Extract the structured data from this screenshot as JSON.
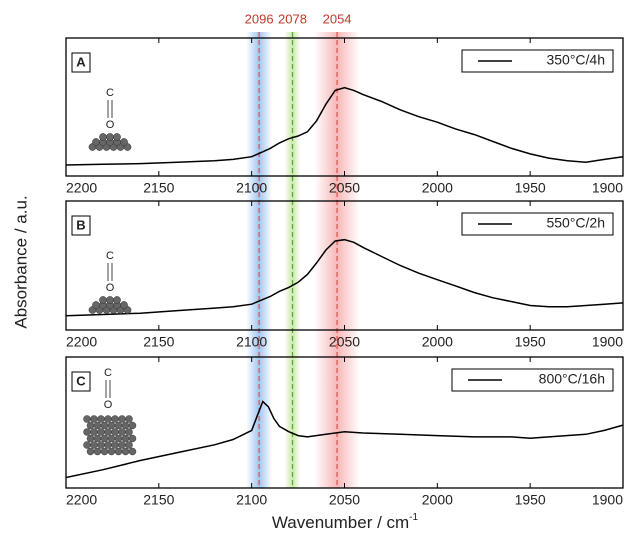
{
  "figure": {
    "ylabel": "Absorbance / a.u.",
    "xlabel": "Wavenumber / cm",
    "xlabel_superscript": "-1",
    "marker_label_color": "#c0392b",
    "markers": [
      {
        "x": 2096,
        "color": "#d9534f",
        "band_color": "#7fb2ee"
      },
      {
        "x": 2078,
        "color": "#55aa33",
        "band_color": "#b8e08a"
      },
      {
        "x": 2054,
        "color": "#d9534f",
        "band_color": "#f5a0a0"
      }
    ]
  },
  "chart_data": [
    {
      "type": "line",
      "panel_label": "A",
      "molecule": [
        "C",
        "O"
      ],
      "legend": "upper right",
      "x": [
        2200,
        2180,
        2160,
        2140,
        2120,
        2110,
        2100,
        2090,
        2085,
        2080,
        2075,
        2070,
        2065,
        2060,
        2055,
        2050,
        2045,
        2040,
        2030,
        2020,
        2010,
        2000,
        1990,
        1980,
        1970,
        1960,
        1950,
        1940,
        1930,
        1920,
        1910,
        1900
      ],
      "series": [
        {
          "name": "350°C/4h",
          "color": "#000000",
          "values": [
            0.08,
            0.085,
            0.09,
            0.1,
            0.11,
            0.12,
            0.14,
            0.2,
            0.24,
            0.27,
            0.29,
            0.32,
            0.4,
            0.52,
            0.62,
            0.64,
            0.62,
            0.59,
            0.54,
            0.48,
            0.43,
            0.39,
            0.34,
            0.3,
            0.25,
            0.2,
            0.16,
            0.13,
            0.11,
            0.1,
            0.12,
            0.14
          ]
        }
      ],
      "xlim": [
        2200,
        1900
      ],
      "ylim": [
        0,
        1
      ],
      "xticks": [
        2200,
        2150,
        2100,
        2050,
        2000,
        1950,
        1900
      ]
    },
    {
      "type": "line",
      "panel_label": "B",
      "molecule": [
        "C",
        "O"
      ],
      "legend": "upper right",
      "x": [
        2200,
        2180,
        2160,
        2140,
        2120,
        2110,
        2100,
        2090,
        2085,
        2080,
        2075,
        2070,
        2065,
        2060,
        2055,
        2050,
        2045,
        2040,
        2030,
        2020,
        2010,
        2000,
        1990,
        1980,
        1970,
        1960,
        1950,
        1940,
        1930,
        1920,
        1910,
        1900
      ],
      "series": [
        {
          "name": "550°C/2h",
          "color": "#000000",
          "values": [
            0.11,
            0.12,
            0.13,
            0.15,
            0.17,
            0.18,
            0.2,
            0.26,
            0.3,
            0.33,
            0.37,
            0.43,
            0.52,
            0.62,
            0.69,
            0.7,
            0.68,
            0.64,
            0.57,
            0.5,
            0.44,
            0.39,
            0.34,
            0.29,
            0.25,
            0.22,
            0.19,
            0.18,
            0.18,
            0.19,
            0.2,
            0.21
          ]
        }
      ],
      "xlim": [
        2200,
        1900
      ],
      "ylim": [
        0,
        1
      ],
      "xticks": [
        2200,
        2150,
        2100,
        2050,
        2000,
        1950,
        1900
      ]
    },
    {
      "type": "line",
      "panel_label": "C",
      "molecule": [
        "C",
        "O"
      ],
      "legend": "upper right",
      "x": [
        2200,
        2180,
        2160,
        2140,
        2120,
        2110,
        2100,
        2097,
        2094,
        2091,
        2088,
        2085,
        2080,
        2075,
        2070,
        2060,
        2050,
        2040,
        2020,
        2000,
        1980,
        1960,
        1950,
        1940,
        1920,
        1910,
        1900
      ],
      "series": [
        {
          "name": "800°C/16h",
          "color": "#000000",
          "values": [
            0.08,
            0.14,
            0.21,
            0.27,
            0.33,
            0.37,
            0.44,
            0.55,
            0.66,
            0.62,
            0.53,
            0.47,
            0.43,
            0.4,
            0.39,
            0.41,
            0.43,
            0.42,
            0.41,
            0.4,
            0.39,
            0.39,
            0.38,
            0.39,
            0.41,
            0.44,
            0.48
          ]
        }
      ],
      "xlim": [
        2200,
        1900
      ],
      "ylim": [
        0,
        1
      ],
      "xticks": [
        2200,
        2150,
        2100,
        2050,
        2000,
        1950,
        1900
      ]
    }
  ]
}
